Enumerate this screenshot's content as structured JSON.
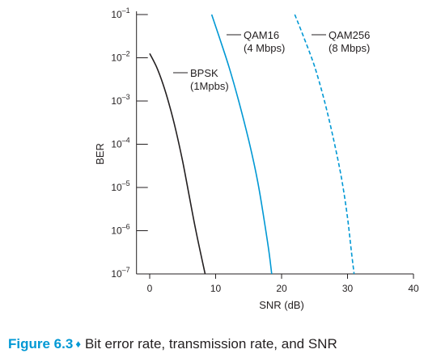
{
  "chart_data": {
    "type": "line",
    "xlabel": "SNR (dB)",
    "ylabel": "BER",
    "xlim": [
      -2,
      40
    ],
    "ylim": [
      -7,
      -1
    ],
    "log_y": true,
    "grid": false,
    "x_ticks": [
      0,
      10,
      20,
      30,
      40
    ],
    "y_ticks": [
      {
        "value": -1,
        "base": "10",
        "exp": "–1"
      },
      {
        "value": -2,
        "base": "10",
        "exp": "–2"
      },
      {
        "value": -3,
        "base": "10",
        "exp": "–3"
      },
      {
        "value": -4,
        "base": "10",
        "exp": "–4"
      },
      {
        "value": -5,
        "base": "10",
        "exp": "–5"
      },
      {
        "value": -6,
        "base": "10",
        "exp": "–6"
      },
      {
        "value": -7,
        "base": "10",
        "exp": "–7"
      }
    ],
    "series": [
      {
        "name": "BPSK",
        "rate": "(1Mpbs)",
        "color": "#231f20",
        "dash": false,
        "points": [
          [
            0,
            -1.9
          ],
          [
            1,
            -2.2
          ],
          [
            2,
            -2.6
          ],
          [
            3,
            -3.1
          ],
          [
            4,
            -3.7
          ],
          [
            5,
            -4.4
          ],
          [
            6,
            -5.2
          ],
          [
            7,
            -6.0
          ],
          [
            8.4,
            -7.0
          ]
        ]
      },
      {
        "name": "QAM16",
        "rate": "(4 Mbps)",
        "color": "#0098d4",
        "dash": false,
        "points": [
          [
            9.4,
            -1.0
          ],
          [
            10.5,
            -1.5
          ],
          [
            12,
            -2.2
          ],
          [
            13.5,
            -3.0
          ],
          [
            15,
            -3.9
          ],
          [
            16.3,
            -4.8
          ],
          [
            17.3,
            -5.7
          ],
          [
            18.1,
            -6.5
          ],
          [
            18.5,
            -7.0
          ]
        ]
      },
      {
        "name": "QAM256",
        "rate": "(8 Mbps)",
        "color": "#0098d4",
        "dash": true,
        "points": [
          [
            22,
            -1.0
          ],
          [
            23.3,
            -1.5
          ],
          [
            25,
            -2.2
          ],
          [
            26.5,
            -3.0
          ],
          [
            27.9,
            -3.9
          ],
          [
            29.1,
            -4.8
          ],
          [
            30.0,
            -5.7
          ],
          [
            30.6,
            -6.5
          ],
          [
            31.0,
            -7.0
          ]
        ]
      }
    ]
  },
  "caption": {
    "figure_label": "Figure 6.3",
    "separator": "♦",
    "text": "Bit error rate, transmission rate, and SNR"
  }
}
